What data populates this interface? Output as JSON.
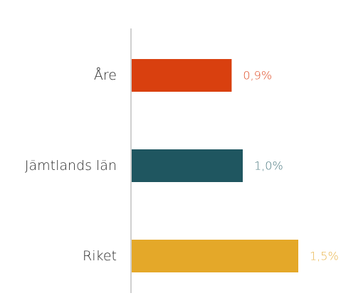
{
  "chart_data": {
    "type": "bar",
    "orientation": "horizontal",
    "title": "",
    "xlabel": "",
    "ylabel": "",
    "categories": [
      "Åre",
      "Jämtlands län",
      "Riket"
    ],
    "values": [
      0.9,
      1.0,
      1.5
    ],
    "value_labels": [
      "0,9%",
      "1,0%",
      "1,5%"
    ],
    "colors": [
      "#d9400f",
      "#1f5660",
      "#e4a829"
    ],
    "label_colors": [
      "#e0502a",
      "#4f7c83",
      "#e8b44a"
    ],
    "axis_color": "#d0d0d0",
    "xlim": [
      0,
      1.5
    ],
    "grid": false,
    "legend": "none"
  }
}
